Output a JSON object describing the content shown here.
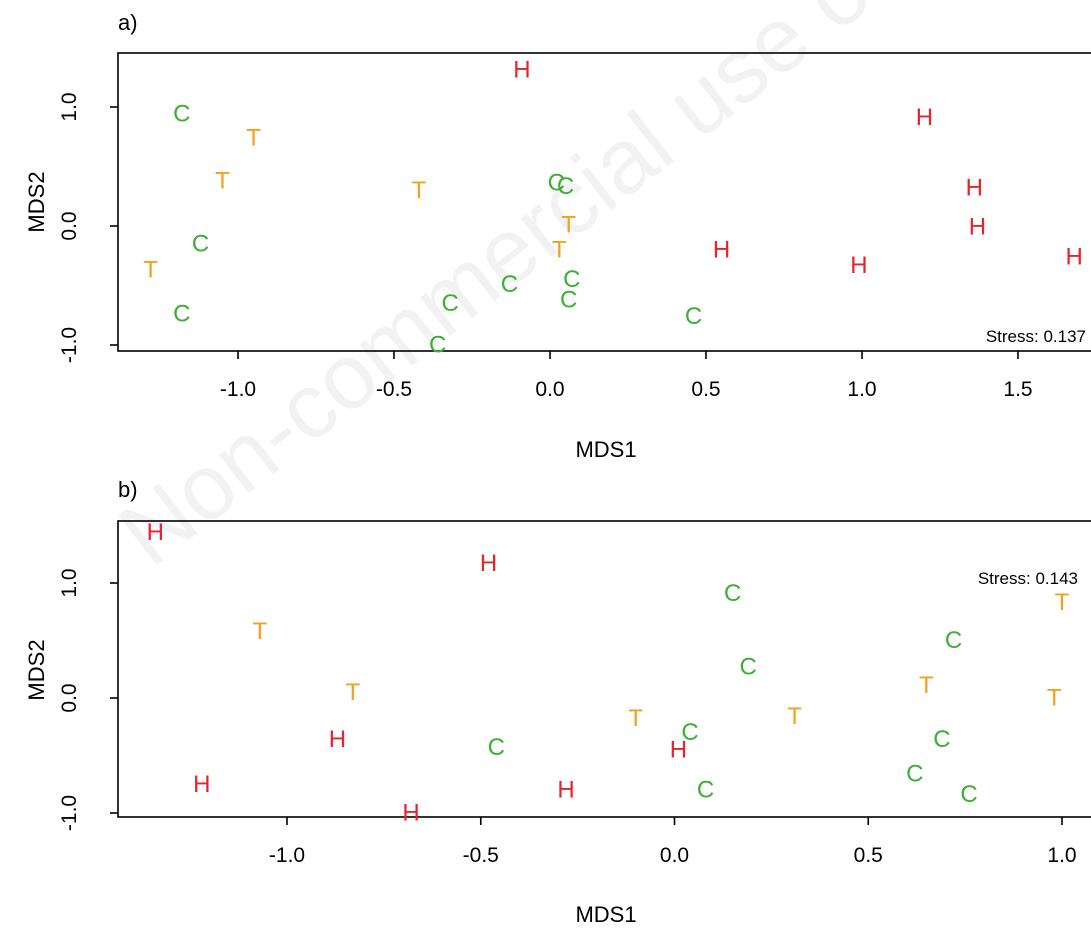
{
  "watermark": "Non-commercial use only",
  "colors": {
    "H": "#e8232b",
    "T": "#f5a01a",
    "C": "#3bb033"
  },
  "chart_data": [
    {
      "type": "scatter",
      "panel_label": "a)",
      "xlabel": "MDS1",
      "ylabel": "MDS2",
      "annotation": "Stress: 0.137",
      "xlim": [
        -1.45,
        1.75
      ],
      "ylim": [
        -1.05,
        1.45
      ],
      "xticks": [
        -1.0,
        -0.5,
        0.0,
        0.5,
        1.0,
        1.5
      ],
      "xtick_labels": [
        "-1.0",
        "-0.5",
        "0.0",
        "0.5",
        "1.0",
        "1.5"
      ],
      "yticks": [
        -1.0,
        0.0,
        1.0
      ],
      "ytick_labels": [
        "-1.0",
        "0.0",
        "1.0"
      ],
      "grid": false,
      "points": [
        {
          "label": "H",
          "x": -0.09,
          "y": 1.31
        },
        {
          "label": "H",
          "x": 1.2,
          "y": 0.91
        },
        {
          "label": "H",
          "x": 1.36,
          "y": 0.32
        },
        {
          "label": "H",
          "x": 1.37,
          "y": -0.01
        },
        {
          "label": "H",
          "x": 0.55,
          "y": -0.2
        },
        {
          "label": "H",
          "x": 0.99,
          "y": -0.33
        },
        {
          "label": "H",
          "x": 1.68,
          "y": -0.26
        },
        {
          "label": "T",
          "x": -0.95,
          "y": 0.74
        },
        {
          "label": "T",
          "x": -1.05,
          "y": 0.38
        },
        {
          "label": "T",
          "x": -0.42,
          "y": 0.3
        },
        {
          "label": "T",
          "x": 0.06,
          "y": 0.01
        },
        {
          "label": "T",
          "x": 0.03,
          "y": -0.2
        },
        {
          "label": "T",
          "x": -1.28,
          "y": -0.37
        },
        {
          "label": "C",
          "x": -1.18,
          "y": 0.94
        },
        {
          "label": "C",
          "x": 0.02,
          "y": 0.36
        },
        {
          "label": "C",
          "x": 0.05,
          "y": 0.33
        },
        {
          "label": "C",
          "x": -1.12,
          "y": -0.15
        },
        {
          "label": "C",
          "x": 0.07,
          "y": -0.45
        },
        {
          "label": "C",
          "x": -0.13,
          "y": -0.49
        },
        {
          "label": "C",
          "x": -0.32,
          "y": -0.65
        },
        {
          "label": "C",
          "x": 0.06,
          "y": -0.62
        },
        {
          "label": "C",
          "x": -1.18,
          "y": -0.74
        },
        {
          "label": "C",
          "x": 0.46,
          "y": -0.76
        },
        {
          "label": "C",
          "x": -0.36,
          "y": -1.0
        }
      ]
    },
    {
      "type": "scatter",
      "panel_label": "b)",
      "xlabel": "MDS1",
      "ylabel": "MDS2",
      "annotation": "Stress: 0.143",
      "xlim": [
        -1.45,
        1.05
      ],
      "ylim": [
        -1.05,
        1.5
      ],
      "xticks": [
        -1.0,
        -0.5,
        0.0,
        0.5,
        1.0
      ],
      "xtick_labels": [
        "-1.0",
        "-0.5",
        "0.0",
        "0.5",
        "1.0"
      ],
      "yticks": [
        -1.0,
        0.0,
        1.0
      ],
      "ytick_labels": [
        "-1.0",
        "0.0",
        "1.0"
      ],
      "grid": false,
      "points": [
        {
          "label": "H",
          "x": -1.34,
          "y": 1.44
        },
        {
          "label": "H",
          "x": -0.48,
          "y": 1.17
        },
        {
          "label": "H",
          "x": -0.87,
          "y": -0.36
        },
        {
          "label": "H",
          "x": 0.01,
          "y": -0.45
        },
        {
          "label": "H",
          "x": -1.22,
          "y": -0.75
        },
        {
          "label": "H",
          "x": -0.28,
          "y": -0.8
        },
        {
          "label": "H",
          "x": -0.68,
          "y": -1.0
        },
        {
          "label": "T",
          "x": -1.07,
          "y": 0.58
        },
        {
          "label": "T",
          "x": -0.83,
          "y": 0.05
        },
        {
          "label": "T",
          "x": -0.1,
          "y": -0.18
        },
        {
          "label": "T",
          "x": 0.31,
          "y": -0.16
        },
        {
          "label": "T",
          "x": 0.65,
          "y": 0.11
        },
        {
          "label": "T",
          "x": 0.98,
          "y": 0.0
        },
        {
          "label": "T",
          "x": 1.0,
          "y": 0.83
        },
        {
          "label": "C",
          "x": 0.15,
          "y": 0.91
        },
        {
          "label": "C",
          "x": 0.72,
          "y": 0.5
        },
        {
          "label": "C",
          "x": 0.19,
          "y": 0.27
        },
        {
          "label": "C",
          "x": 0.04,
          "y": -0.3
        },
        {
          "label": "C",
          "x": -0.46,
          "y": -0.43
        },
        {
          "label": "C",
          "x": 0.69,
          "y": -0.36
        },
        {
          "label": "C",
          "x": 0.08,
          "y": -0.8
        },
        {
          "label": "C",
          "x": 0.62,
          "y": -0.66
        },
        {
          "label": "C",
          "x": 0.76,
          "y": -0.84
        }
      ]
    }
  ]
}
